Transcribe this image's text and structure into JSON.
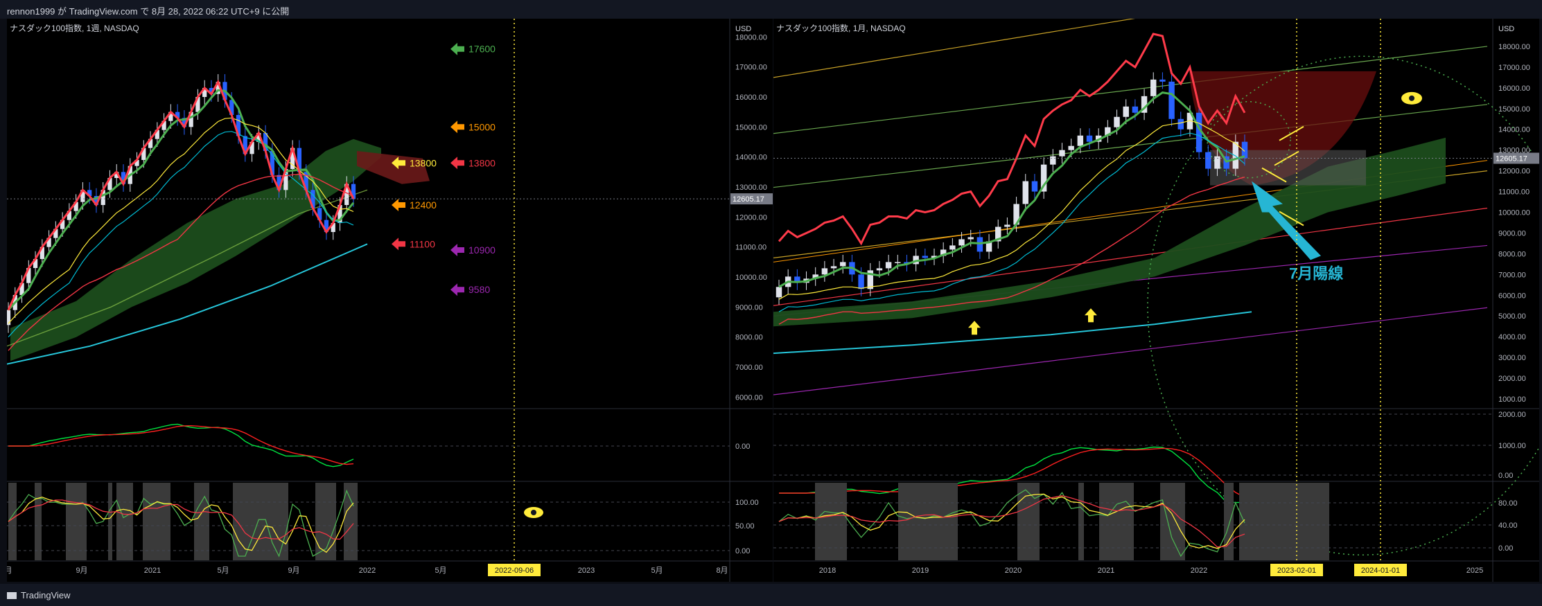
{
  "header": {
    "title": "rennon1999 が TradingView.com で 8月 28, 2022 06:22 UTC+9 に公開"
  },
  "footer": {
    "brand": "TradingView"
  },
  "colors": {
    "bg": "#000000",
    "up": "#e0e3eb",
    "down": "#2962ff",
    "red": "#f23645",
    "green": "#4caf50",
    "yellow": "#ffeb3b",
    "cyan": "#00bcd4",
    "orange": "#ff9800",
    "purple": "#9c27b0"
  },
  "chart_data": [
    {
      "type": "candlestick",
      "title": "ナスダック100指数, 1週, NASDAQ",
      "currency": "USD",
      "ylim": [
        5800,
        18100
      ],
      "y_ticks": [
        "18000.00",
        "17000.00",
        "16000.00",
        "15000.00",
        "14000.00",
        "13000.00",
        "12000.00",
        "11000.00",
        "10000.00",
        "9000.00",
        "8000.00",
        "7000.00",
        "6000.00"
      ],
      "x_ticks": [
        "月",
        "9月",
        "2021",
        "5月",
        "9月",
        "2022",
        "5月",
        "2022-09-06",
        "2023",
        "5月",
        "8月"
      ],
      "current_price": "12605.17",
      "close": [
        8900,
        9400,
        9800,
        10300,
        10600,
        11000,
        11300,
        11600,
        11900,
        12200,
        12500,
        12900,
        12700,
        12400,
        12900,
        13300,
        13500,
        13100,
        13700,
        13900,
        14300,
        14600,
        14900,
        15200,
        15500,
        15300,
        15000,
        15500,
        16000,
        16300,
        16100,
        16500,
        15900,
        15400,
        14700,
        14100,
        14500,
        14800,
        14200,
        13400,
        12900,
        13600,
        14300,
        13500,
        12900,
        12300,
        11900,
        11500,
        11800,
        12400,
        13100,
        12600
      ],
      "targets": [
        {
          "label": "17600",
          "color": "#4caf50",
          "side": "right"
        },
        {
          "label": "15000",
          "color": "#ff9800",
          "side": "right"
        },
        {
          "label": "13800",
          "color": "#ffeb3b",
          "side": "left"
        },
        {
          "label": "13800",
          "color": "#f23645",
          "side": "right"
        },
        {
          "label": "12400",
          "color": "#ff9800",
          "side": "left"
        },
        {
          "label": "11100",
          "color": "#f23645",
          "side": "left"
        },
        {
          "label": "10900",
          "color": "#9c27b0",
          "side": "right"
        },
        {
          "label": "9580",
          "color": "#9c27b0",
          "side": "right"
        }
      ],
      "macd_ticks": [
        "0.00"
      ],
      "osc_ticks": [
        "100.00",
        "50.00",
        "0.00"
      ]
    },
    {
      "type": "candlestick",
      "title": "ナスダック100指数, 1月, NASDAQ",
      "currency": "USD",
      "ylim": [
        800,
        18600
      ],
      "y_ticks": [
        "18000.00",
        "17000.00",
        "16000.00",
        "15000.00",
        "14000.00",
        "13000.00",
        "12000.00",
        "11000.00",
        "10000.00",
        "9000.00",
        "8000.00",
        "7000.00",
        "6000.00",
        "5000.00",
        "4000.00",
        "3000.00",
        "2000.00",
        "1000.00"
      ],
      "x_ticks": [
        "2018",
        "2019",
        "2020",
        "2021",
        "2022",
        "2023-02-01",
        "2024-01-01",
        "2025"
      ],
      "current_price": "12605.17",
      "close": [
        6400,
        6900,
        6600,
        6800,
        7000,
        7300,
        7400,
        7600,
        7000,
        6300,
        7200,
        7300,
        7600,
        7600,
        7500,
        7900,
        7800,
        7900,
        8200,
        8400,
        8700,
        8800,
        8100,
        8600,
        9300,
        9400,
        10400,
        11500,
        11000,
        12300,
        12700,
        13000,
        13200,
        13700,
        13400,
        13700,
        14100,
        14600,
        15100,
        14800,
        15600,
        16400,
        16300,
        14500,
        14000,
        14800,
        12900,
        12100,
        12700,
        12100,
        13400,
        12600
      ],
      "annotation": "7月陽線",
      "macd_ticks": [
        "2000.00",
        "1000.00",
        "0.00"
      ],
      "osc_ticks": [
        "80.00",
        "40.00",
        "0.00"
      ]
    }
  ]
}
